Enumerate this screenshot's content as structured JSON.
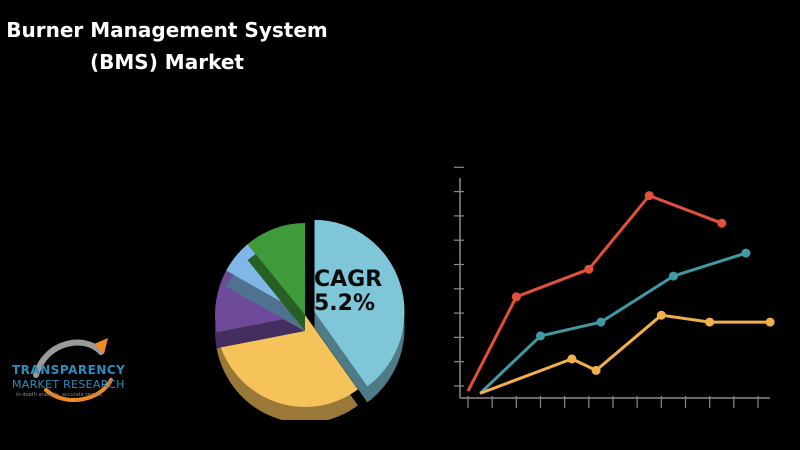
{
  "title": {
    "line1": "Burner Management System",
    "line2": "(BMS) Market"
  },
  "cagr": {
    "label": "CAGR",
    "value": "5.2%"
  },
  "logo": {
    "name_line1": "TRANSPARENCY",
    "name_line2": "MARKET RESEARCH",
    "tagline": "in-depth analysis, accurate results"
  },
  "colors": {
    "background": "#000000",
    "red": "#e2503a",
    "teal": "#3f9aa5",
    "yellow": "#f2b04a",
    "pie_blue": "#7ec6d8",
    "pie_yellow": "#f6c25a",
    "pie_purple": "#6e4a9a",
    "pie_lightblue": "#7fb8e8",
    "pie_green": "#3f9a3a"
  },
  "chart_data": [
    {
      "type": "pie",
      "slices": [
        {
          "color": "#7ec6d8",
          "value": 40
        },
        {
          "color": "#f6c25a",
          "value": 32
        },
        {
          "color": "#6e4a9a",
          "value": 11
        },
        {
          "color": "#7fb8e8",
          "value": 6
        },
        {
          "color": "#3f9a3a",
          "value": 11
        }
      ]
    },
    {
      "type": "line",
      "grid": false,
      "x": [
        0,
        1,
        2,
        3,
        4,
        5,
        6,
        7,
        8,
        9,
        10,
        11,
        12
      ],
      "ylim": [
        0,
        10
      ],
      "series": [
        {
          "color": "#e2503a",
          "points": [
            [
              0,
              0.3
            ],
            [
              2,
              4.4
            ],
            [
              5,
              5.6
            ],
            [
              7.5,
              8.8
            ],
            [
              10.5,
              7.6
            ]
          ]
        },
        {
          "color": "#3f9aa5",
          "points": [
            [
              0.5,
              0.2
            ],
            [
              3,
              2.7
            ],
            [
              5.5,
              3.3
            ],
            [
              8.5,
              5.3
            ],
            [
              11.5,
              6.3
            ]
          ]
        },
        {
          "color": "#f2b04a",
          "points": [
            [
              0.5,
              0.2
            ],
            [
              4.3,
              1.7
            ],
            [
              5.3,
              1.2
            ],
            [
              8,
              3.6
            ],
            [
              10,
              3.3
            ],
            [
              12.5,
              3.3
            ]
          ]
        }
      ]
    }
  ]
}
